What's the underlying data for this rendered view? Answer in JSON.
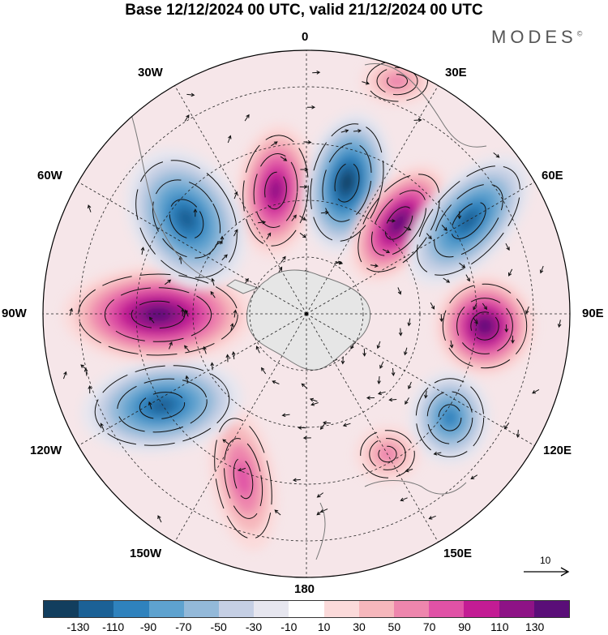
{
  "title": "Base 12/12/2024 00 UTC, valid 21/12/2024 00 UTC",
  "brand": {
    "name": "MODES",
    "mark": "©"
  },
  "longitude_labels": {
    "lon_0": "0",
    "lon_30e": "30E",
    "lon_60e": "60E",
    "lon_90e": "90E",
    "lon_120e": "120E",
    "lon_150e": "150E",
    "lon_180": "180",
    "lon_150w": "150W",
    "lon_120w": "120W",
    "lon_90w": "90W",
    "lon_60w": "60W",
    "lon_30w": "30W"
  },
  "reference_vector": {
    "value": "10"
  },
  "map_data": {
    "projection": "south polar stereographic",
    "anomaly_centers": [
      {
        "sign": "positive",
        "lon_label": "0",
        "peak_class": "90 to 110"
      },
      {
        "sign": "negative",
        "lon_label": "between 0 and 30E",
        "peak_class": "-130 to -110"
      },
      {
        "sign": "positive",
        "lon_label": "between 30E and 60E",
        "peak_class": "110 to 130"
      },
      {
        "sign": "negative",
        "lon_label": "60E",
        "peak_class": "-110 to -90"
      },
      {
        "sign": "positive",
        "lon_label": "90E",
        "peak_class": "110 to 130"
      },
      {
        "sign": "negative",
        "lon_label": "120E",
        "peak_class": "-90 to -70"
      },
      {
        "sign": "positive",
        "lon_label": "150W",
        "peak_class": "50 to 70"
      },
      {
        "sign": "negative",
        "lon_label": "120W",
        "peak_class": "-110 to -90"
      },
      {
        "sign": "positive",
        "lon_label": "90W",
        "peak_class": "110 to 130"
      },
      {
        "sign": "negative",
        "lon_label": "60W",
        "peak_class": "-110 to -90"
      }
    ]
  },
  "colorbar": {
    "colors": [
      "#123e5e",
      "#1b6196",
      "#2f82bd",
      "#5ea2cf",
      "#93b9d9",
      "#c5cfe4",
      "#e6e6ef",
      "#ffffff",
      "#fbdada",
      "#f6b7bc",
      "#ee86ad",
      "#e052a6",
      "#c31c94",
      "#8e1386",
      "#5a0e78"
    ],
    "ticks": [
      "-130",
      "-110",
      "-90",
      "-70",
      "-50",
      "-30",
      "-10",
      "10",
      "30",
      "50",
      "70",
      "90",
      "110",
      "130"
    ]
  }
}
